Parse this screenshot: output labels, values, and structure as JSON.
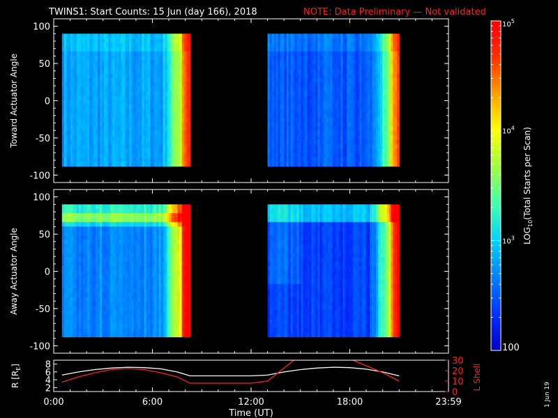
{
  "header": {
    "title": "TWINS1: Start Counts: 15 Jun (day 166), 2018",
    "note": "NOTE: Data Preliminary — Not validated",
    "note_color": "#ff2020"
  },
  "side_label": "1 Jun 19",
  "chart_data": [
    {
      "type": "heatmap",
      "panel": "top",
      "ylabel": "Toward Actuator Angle",
      "ylim": [
        -110,
        110
      ],
      "yticks": [
        100,
        50,
        0,
        -50,
        -100
      ],
      "xlim": [
        0,
        24
      ],
      "angle_range": [
        -88,
        90
      ],
      "data_windows": [
        {
          "start_h": 0.5,
          "end_h": 8.3
        },
        {
          "start_h": 13.0,
          "end_h": 21.0
        }
      ]
    },
    {
      "type": "heatmap",
      "panel": "middle",
      "ylabel": "Away Actuator Angle",
      "ylim": [
        -110,
        110
      ],
      "yticks": [
        100,
        50,
        0,
        -50,
        -100
      ],
      "xlim": [
        0,
        24
      ],
      "angle_range": [
        -88,
        90
      ],
      "data_windows": [
        {
          "start_h": 0.5,
          "end_h": 8.3
        },
        {
          "start_h": 13.0,
          "end_h": 21.0
        }
      ]
    },
    {
      "type": "line",
      "panel": "bottom",
      "xlabel": "Time (UT)",
      "xlim": [
        0,
        24
      ],
      "xtick_labels": [
        "0:00",
        "6:00",
        "12:00",
        "18:00",
        "23:59"
      ],
      "xtick_hours": [
        0,
        6,
        12,
        18,
        24
      ],
      "left_axis": {
        "label": "R [R",
        "label_sub": "E",
        "label_end": "]",
        "ylim": [
          1,
          9
        ],
        "ticks": [
          2,
          4,
          6,
          8
        ]
      },
      "right_axis": {
        "label": "L Shell",
        "ylim": [
          0,
          30
        ],
        "ticks": [
          0,
          10,
          20,
          30
        ]
      },
      "series": [
        {
          "axis": "left",
          "color": "#ffffff",
          "x": [
            0.5,
            1.5,
            2.5,
            3.5,
            4.5,
            5.5,
            6.5,
            7.5,
            8.3,
            10,
            12,
            13,
            14,
            15,
            16,
            17,
            18,
            19,
            20,
            21
          ],
          "y": [
            5.2,
            6.0,
            6.6,
            7.0,
            7.2,
            7.1,
            6.8,
            6.0,
            5.0,
            5.0,
            5.0,
            5.2,
            6.0,
            6.6,
            7.0,
            7.2,
            7.1,
            6.7,
            6.0,
            5.0
          ]
        },
        {
          "axis": "right",
          "color": "#ff2020",
          "x": [
            0.5,
            1.5,
            2.5,
            3.5,
            4.5,
            5.5,
            6.5,
            7.5,
            8.3,
            10,
            12,
            13,
            14.6,
            18.2,
            20,
            21
          ],
          "y": [
            9,
            14,
            18,
            21,
            22,
            21,
            18,
            14,
            8,
            8,
            8,
            10,
            30,
            30,
            18,
            10
          ]
        }
      ]
    }
  ],
  "colorbar": {
    "label_main": "LOG",
    "label_sub": "10",
    "label_rest": "(Total Starts per Scan)",
    "range": [
      100,
      100000
    ],
    "tick_labels": [
      {
        "base": "10",
        "exp": "5",
        "value": 100000
      },
      {
        "base": "10",
        "exp": "4",
        "value": 10000
      },
      {
        "base": "10",
        "exp": "3",
        "value": 1000
      },
      {
        "base": "100",
        "exp": "",
        "value": 100
      }
    ],
    "stops": [
      "#0000c0",
      "#0030ff",
      "#0080ff",
      "#00d0ff",
      "#40ffb0",
      "#a0ff40",
      "#ffff00",
      "#ffa000",
      "#ff3000",
      "#ff0000"
    ]
  }
}
